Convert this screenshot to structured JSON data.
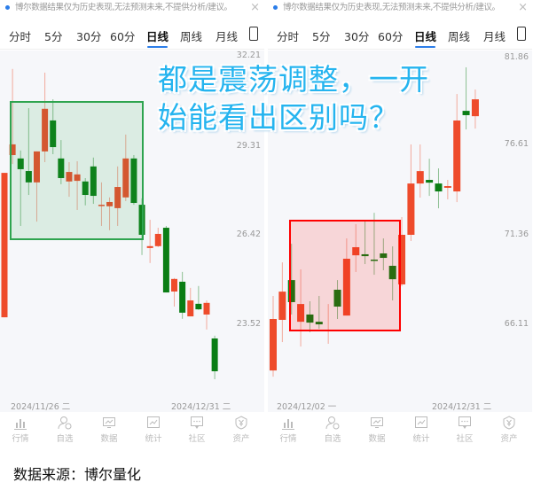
{
  "notice_text": "博尔数据结果仅为历史表现,无法预测未来,不提供分析/建议。",
  "notice_close": "×",
  "tabs": [
    "分时",
    "5分",
    "30分",
    "60分",
    "日线",
    "周线",
    "月线"
  ],
  "active_tab": "日线",
  "nav": [
    "行情",
    "自选",
    "数据",
    "统计",
    "社区",
    "资产"
  ],
  "overlay": {
    "line1": "都是震荡调整，一开",
    "line2": "始能看出区别吗？",
    "color": "#25b4ef"
  },
  "footer": "数据来源：博尔量化",
  "colors": {
    "up": "#ee4b2b",
    "down": "#0a7d14",
    "accent": "#2b7de9",
    "highlight_left": "#2ea44f",
    "highlight_right": "#ff0000"
  },
  "chart_data": [
    {
      "type": "candlestick",
      "y_labels": [
        "32.21",
        "29.31",
        "26.42",
        "23.52"
      ],
      "start_date": "2024/11/26 二",
      "end_date": "2024/12/31 二",
      "highlight": "consolidation box (green)",
      "ohlc": [
        [
          23.73,
          28.44,
          23.73,
          28.44
        ],
        [
          29.02,
          31.83,
          28.73,
          29.37
        ],
        [
          28.91,
          29.17,
          26.71,
          28.56
        ],
        [
          28.5,
          30.55,
          27.72,
          28.13
        ],
        [
          28.13,
          29.14,
          26.85,
          29.14
        ],
        [
          29.14,
          31.71,
          28.79,
          30.53
        ],
        [
          30.15,
          30.84,
          29.05,
          29.28
        ],
        [
          28.91,
          29.51,
          28.07,
          28.27
        ],
        [
          28.16,
          28.79,
          27.66,
          28.47
        ],
        [
          28.18,
          28.82,
          27.23,
          28.39
        ],
        [
          28.16,
          28.27,
          27.38,
          27.72
        ],
        [
          28.65,
          28.94,
          27.43,
          27.69
        ],
        [
          27.38,
          28.13,
          26.71,
          27.4
        ],
        [
          27.35,
          27.64,
          26.57,
          27.49
        ],
        [
          27.29,
          28.65,
          26.71,
          27.98
        ],
        [
          27.64,
          29.69,
          27.52,
          28.91
        ],
        [
          28.91,
          29.02,
          27.4,
          27.46
        ],
        [
          27.4,
          27.61,
          25.76,
          26.42
        ],
        [
          25.99,
          26.91,
          25.5,
          26.05
        ],
        [
          26.05,
          26.65,
          26.02,
          26.45
        ],
        [
          26.65,
          26.71,
          24.54,
          24.54
        ],
        [
          24.57,
          25.01,
          24.08,
          24.98
        ],
        [
          24.89,
          25.21,
          23.68,
          23.88
        ],
        [
          23.76,
          24.69,
          23.76,
          24.28
        ],
        [
          24.17,
          24.75,
          23.97,
          23.99
        ],
        [
          23.82,
          24.28,
          23.33,
          24.2
        ],
        [
          23.04,
          23.13,
          21.71,
          21.97
        ]
      ]
    },
    {
      "type": "candlestick",
      "y_labels": [
        "81.86",
        "76.61",
        "71.36",
        "66.11"
      ],
      "start_date": "2024/12/02 一",
      "end_date": "2024/12/31 二",
      "highlight": "consolidation box (red)",
      "ohlc": [
        [
          63.48,
          67.81,
          63.12,
          66.47
        ],
        [
          66.42,
          69.76,
          65.13,
          68.06
        ],
        [
          68.73,
          70.84,
          66.73,
          67.45
        ],
        [
          66.31,
          69.35,
          64.87,
          67.34
        ],
        [
          66.73,
          67.5,
          65.7,
          66.26
        ],
        [
          66.31,
          67.81,
          65.9,
          66.16
        ],
        [
          65.8,
          67.34,
          65.03,
          65.85
        ],
        [
          68.17,
          68.73,
          66.47,
          67.19
        ],
        [
          66.67,
          71.15,
          66.67,
          69.97
        ],
        [
          70.17,
          71.98,
          69.2,
          70.64
        ],
        [
          70.23,
          72.23,
          69.66,
          70.12
        ],
        [
          69.92,
          72.64,
          69.04,
          69.87
        ],
        [
          70.28,
          71.15,
          69.3,
          70.02
        ],
        [
          69.56,
          70.69,
          67.55,
          68.78
        ],
        [
          68.48,
          72.39,
          68.37,
          71.36
        ],
        [
          71.36,
          76.61,
          71.0,
          74.34
        ],
        [
          74.34,
          76.61,
          73.52,
          75.06
        ],
        [
          74.55,
          75.78,
          73.62,
          74.39
        ],
        [
          74.34,
          75.22,
          72.9,
          73.88
        ],
        [
          74.09,
          74.55,
          73.42,
          74.19
        ],
        [
          73.88,
          79.54,
          73.26,
          78.0
        ],
        [
          78.56,
          81.09,
          77.48,
          78.31
        ],
        [
          78.25,
          79.8,
          77.53,
          79.23
        ]
      ]
    }
  ]
}
